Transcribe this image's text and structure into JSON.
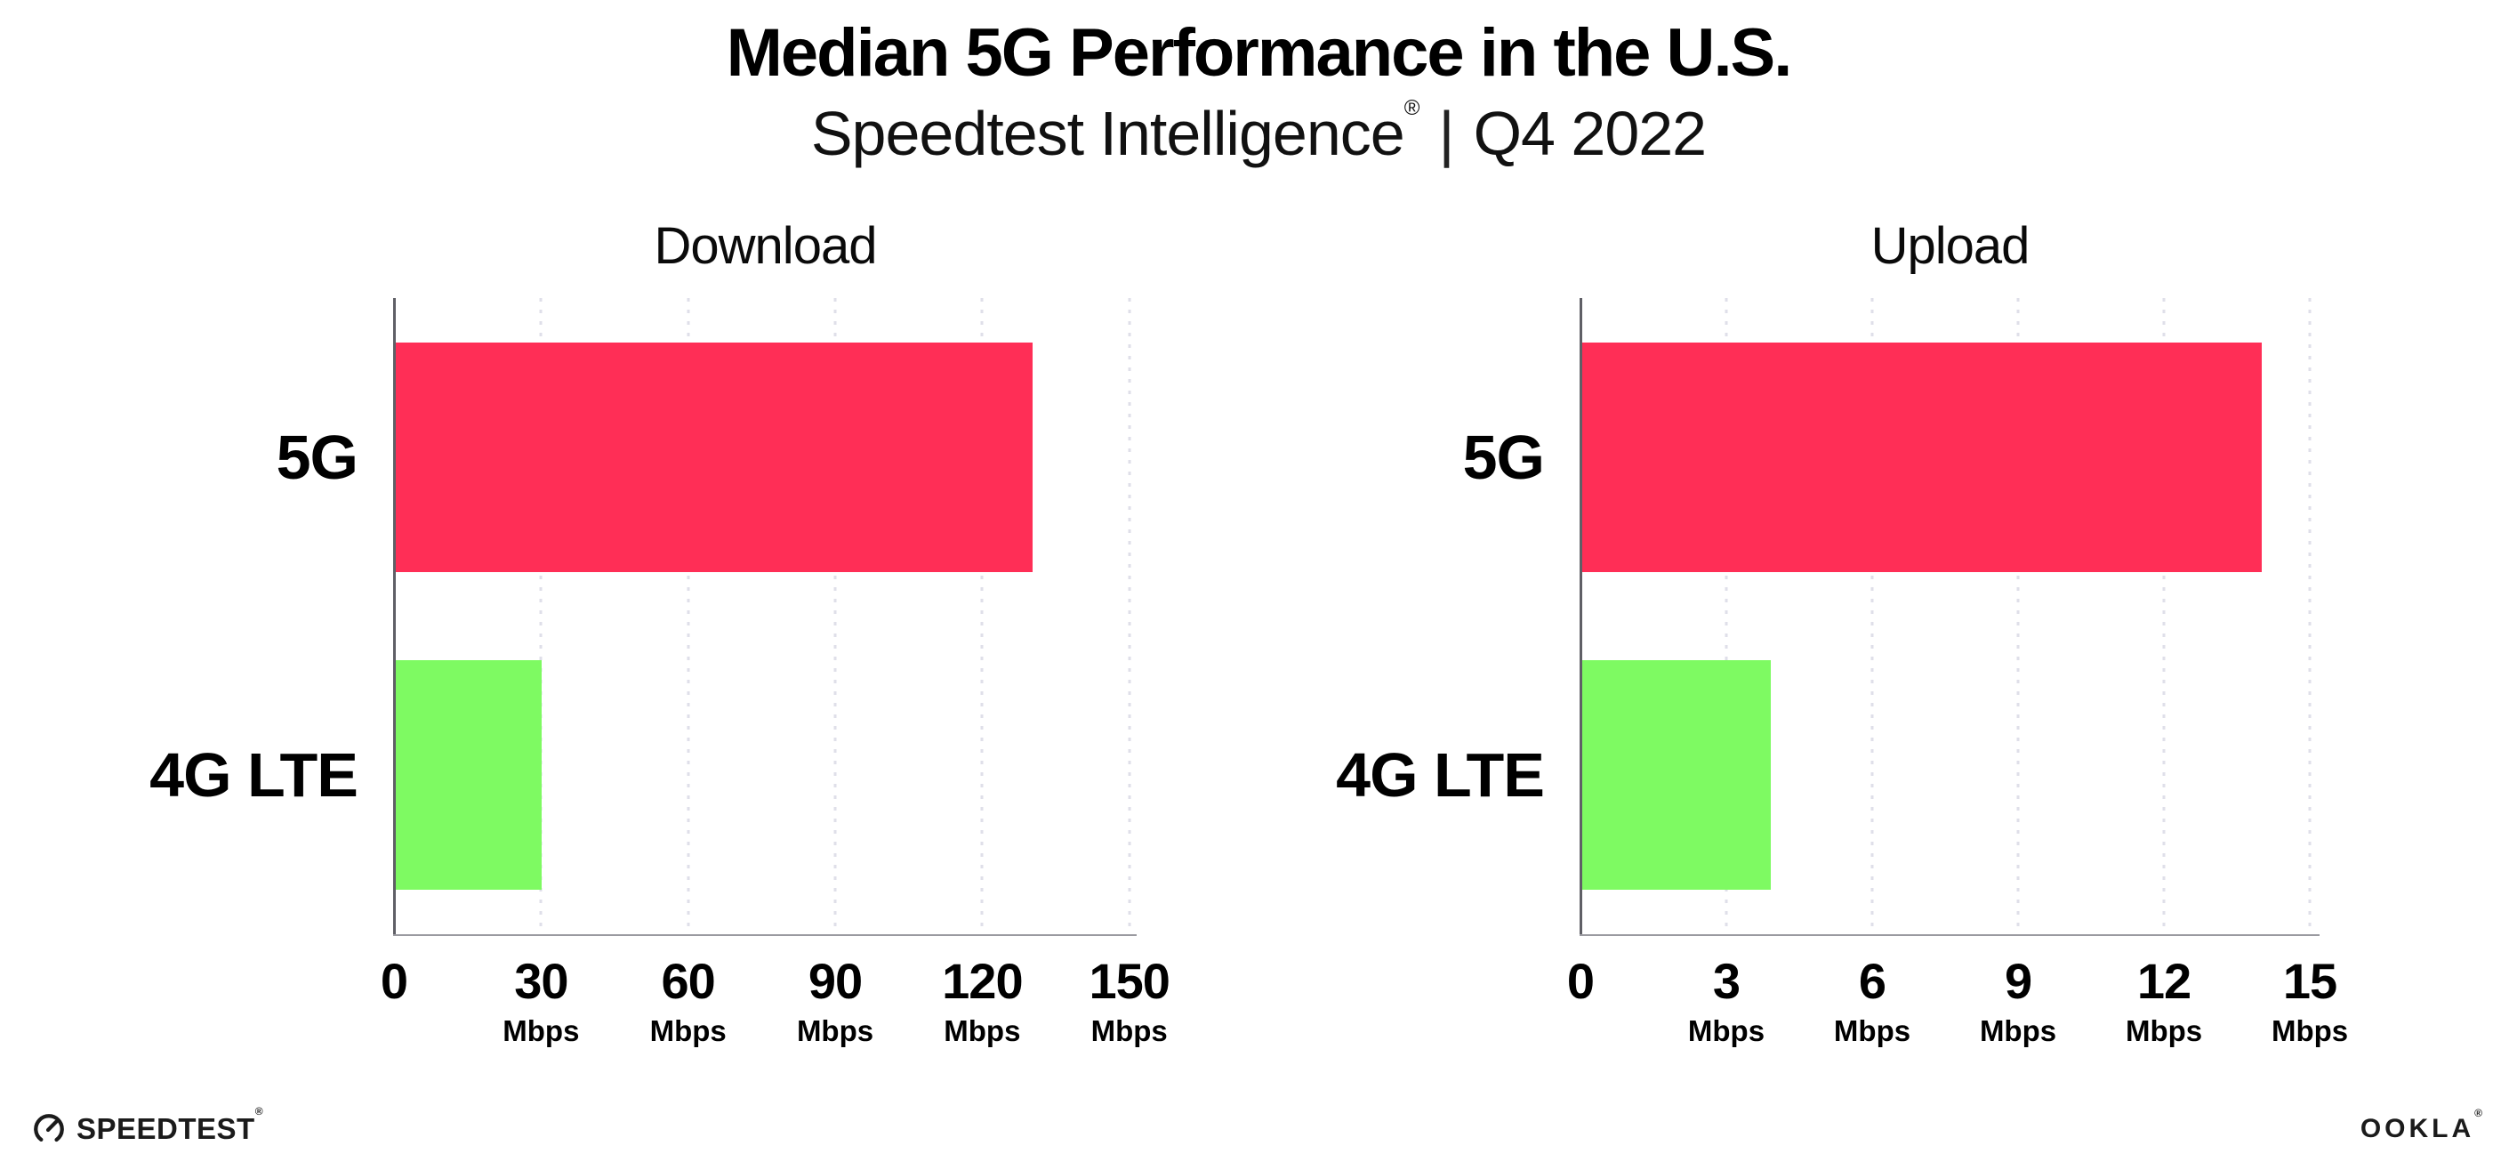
{
  "header": {
    "title": "Median 5G Performance in the U.S.",
    "subtitle_brand": "Speedtest Intelligence",
    "subtitle_reg": "®",
    "subtitle_separator": "|",
    "subtitle_period": "Q4 2022"
  },
  "chart_data": [
    {
      "type": "bar",
      "orientation": "horizontal",
      "title": "Download",
      "categories": [
        "5G",
        "4G LTE"
      ],
      "values": [
        130,
        30
      ],
      "unit": "Mbps",
      "xlim": [
        0,
        151.5
      ],
      "ticks": [
        0,
        30,
        60,
        90,
        120,
        150
      ],
      "grid": "vertical-dotted",
      "legend": "none",
      "bar_colors": [
        "#FF2E56",
        "#7EFA62"
      ]
    },
    {
      "type": "bar",
      "orientation": "horizontal",
      "title": "Upload",
      "categories": [
        "5G",
        "4G LTE"
      ],
      "values": [
        14,
        3.9
      ],
      "unit": "Mbps",
      "xlim": [
        0,
        15.2
      ],
      "ticks": [
        0,
        3,
        6,
        9,
        12,
        15
      ],
      "grid": "vertical-dotted",
      "legend": "none",
      "bar_colors": [
        "#FF2E56",
        "#7EFA62"
      ]
    }
  ],
  "colors": {
    "bar_5g": "#FF2E56",
    "bar_4g_lte": "#7EFA62",
    "gridline": "#DFDFE9",
    "y_axis": "#5F5F66",
    "x_axis": "#9A9AA0",
    "text": "#000000",
    "background": "#FFFFFF"
  },
  "footer": {
    "speedtest_label": "SPEEDTEST",
    "speedtest_mark": "®",
    "ookla_label": "OOKLA",
    "ookla_mark": "®"
  }
}
